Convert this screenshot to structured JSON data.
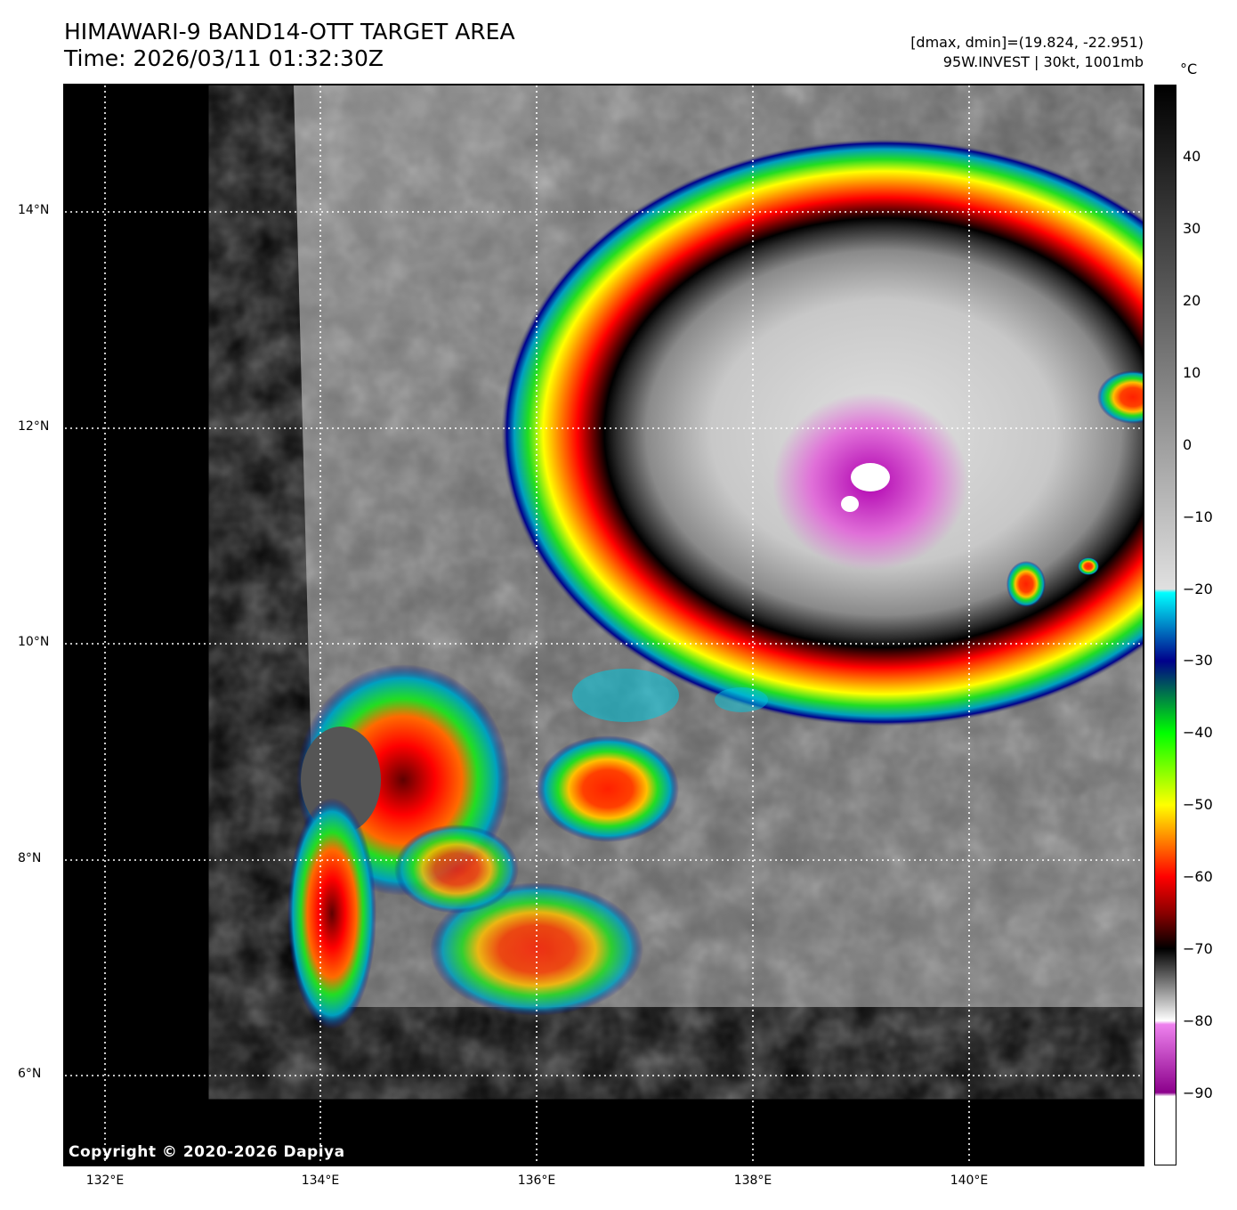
{
  "header": {
    "title_line1": "HIMAWARI-9 BAND14-OTT TARGET AREA",
    "title_line2": "Time: 2026/03/11 01:32:30Z",
    "range_text": "[dmax, dmin]=(19.824, -22.951)",
    "storm_text": "95W.INVEST | 30kt, 1001mb"
  },
  "colorbar": {
    "unit": "°C",
    "ticks": [
      "40",
      "30",
      "20",
      "10",
      "0",
      "−10",
      "−20",
      "−30",
      "−40",
      "−50",
      "−60",
      "−70",
      "−80",
      "−90"
    ],
    "range": [
      -100,
      50
    ],
    "stops": [
      {
        "t": 50,
        "color": "#000000"
      },
      {
        "t": 25,
        "color": "#4d4d4d"
      },
      {
        "t": -20,
        "color": "#e0e0e0"
      },
      {
        "t": -20.5,
        "color": "#00ffff"
      },
      {
        "t": -30,
        "color": "#00008b"
      },
      {
        "t": -40,
        "color": "#00ff00"
      },
      {
        "t": -50,
        "color": "#ffff00"
      },
      {
        "t": -60,
        "color": "#ff0000"
      },
      {
        "t": -65,
        "color": "#8b0000"
      },
      {
        "t": -70,
        "color": "#000000"
      },
      {
        "t": -80,
        "color": "#ffffff"
      },
      {
        "t": -80.5,
        "color": "#ee82ee"
      },
      {
        "t": -90,
        "color": "#8b008b"
      },
      {
        "t": -90.5,
        "color": "#ffffff"
      },
      {
        "t": -100,
        "color": "#ffffff"
      }
    ]
  },
  "map": {
    "lat_labels": [
      "14°N",
      "12°N",
      "10°N",
      "8°N",
      "6°N"
    ],
    "lon_labels": [
      "132°E",
      "134°E",
      "136°E",
      "138°E",
      "140°E"
    ],
    "colors": {
      "ring_red": "#ff0000",
      "ring_dark": "#3a0000",
      "green": "#22dd22",
      "yellow": "#ffff00",
      "cyan": "#00e5ff",
      "navy": "#00008b",
      "magenta": "#e070d8"
    }
  },
  "footer": {
    "copyright": "Copyright © 2020-2026 Dapiya"
  }
}
